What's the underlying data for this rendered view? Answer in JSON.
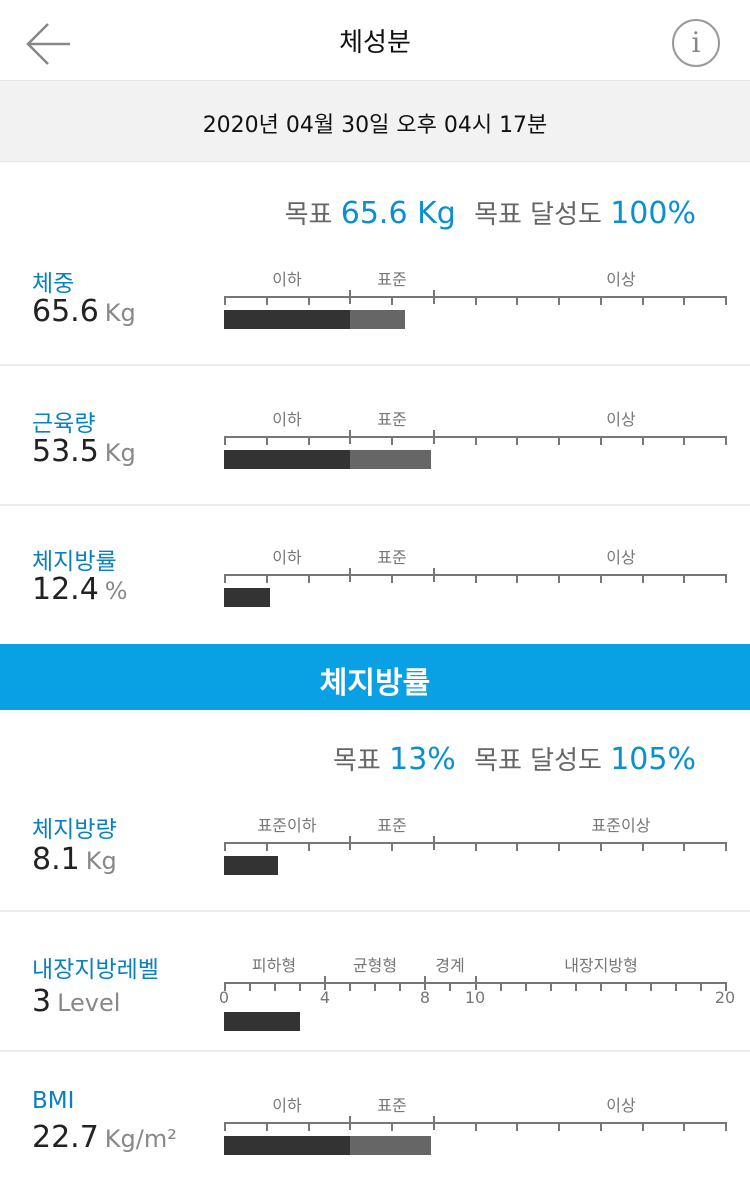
{
  "header": {
    "title": "체성분",
    "info_glyph": "i"
  },
  "date": {
    "text": "2020년 04월 30일 오후 04시 17분"
  },
  "section1": {
    "goal": {
      "label": "목표",
      "value": "65.6 Kg",
      "achievement_label": "목표 달성도",
      "achievement_value": "100%"
    },
    "rows": [
      {
        "label": "체중",
        "value": "65.6",
        "unit": "Kg",
        "zones": [
          "이하",
          "표준",
          "이상"
        ]
      },
      {
        "label": "근육량",
        "value": "53.5",
        "unit": "Kg",
        "zones": [
          "이하",
          "표준",
          "이상"
        ]
      },
      {
        "label": "체지방률",
        "value": "12.4",
        "unit": "%",
        "zones": [
          "이하",
          "표준",
          "이상"
        ]
      }
    ]
  },
  "section2": {
    "title": "체지방률",
    "goal": {
      "label": "목표",
      "value": "13%",
      "achievement_label": "목표 달성도",
      "achievement_value": "105%"
    },
    "rows": [
      {
        "label": "체지방량",
        "value": "8.1",
        "unit": "Kg",
        "zones": [
          "표준이하",
          "표준",
          "표준이상"
        ]
      },
      {
        "label": "내장지방레벨",
        "value": "3",
        "unit": "Level",
        "zones": [
          "피하형",
          "균형형",
          "경계",
          "내장지방형"
        ],
        "scale_numbers": [
          "0",
          "4",
          "8",
          "10",
          "20"
        ]
      },
      {
        "label": "BMI",
        "value": "22.7",
        "unit": "Kg/m²",
        "zones": [
          "이하",
          "표준",
          "이상"
        ]
      }
    ]
  },
  "colors": {
    "accent": "#0a80c4",
    "band": "#0aa0e4",
    "bar_dark": "#333333",
    "bar_light": "#666666"
  }
}
